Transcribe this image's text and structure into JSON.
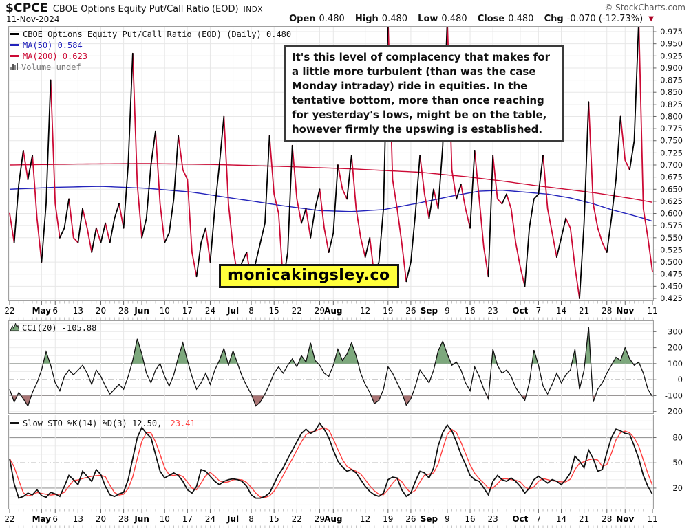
{
  "header": {
    "symbol": "$CPCE",
    "title": "CBOE Options Equity Put/Call Ratio (EOD)",
    "exchange": "INDX",
    "date": "11-Nov-2024",
    "copyright": "© StockCharts.com",
    "quote": {
      "open_label": "Open",
      "open_value": "0.480",
      "high_label": "High",
      "high_value": "0.480",
      "low_label": "Low",
      "low_value": "0.480",
      "close_label": "Close",
      "close_value": "0.480",
      "chg_label": "Chg",
      "chg_value": "-0.070 (-12.73%)"
    }
  },
  "icons": {
    "change_down": "▼"
  },
  "main_chart": {
    "legend_price": "CBOE Options Equity Put/Call Ratio (EOD) (Daily) 0.480",
    "legend_ma50": "MA(50) 0.584",
    "legend_ma200": "MA(200) 0.623",
    "legend_volume": "Volume undef",
    "annotation": "It's this level of complacency that makes for a little more turbulent (than was the case Monday intraday) ride in equities. In the tentative bottom, more than once reaching for yesterday's lows, might be on the table, however firmly the upswing is established.",
    "watermark": "monicakingsley.co"
  },
  "indicators": {
    "cci_legend": "CCI(20) -105.88",
    "sto_legend": "Slow STO %K(14) %D(3) 12.50,",
    "sto_legend_red": "23.41"
  },
  "x_axis": {
    "n": 142,
    "ticks": [
      {
        "i": 0,
        "label": "22",
        "bold": false
      },
      {
        "i": 7,
        "label": "May",
        "bold": true
      },
      {
        "i": 10,
        "label": "6",
        "bold": false
      },
      {
        "i": 15,
        "label": "13",
        "bold": false
      },
      {
        "i": 20,
        "label": "20",
        "bold": false
      },
      {
        "i": 25,
        "label": "28",
        "bold": false
      },
      {
        "i": 29,
        "label": "Jun",
        "bold": true
      },
      {
        "i": 34,
        "label": "10",
        "bold": false
      },
      {
        "i": 39,
        "label": "17",
        "bold": false
      },
      {
        "i": 44,
        "label": "24",
        "bold": false
      },
      {
        "i": 49,
        "label": "Jul",
        "bold": true
      },
      {
        "i": 53,
        "label": "8",
        "bold": false
      },
      {
        "i": 58,
        "label": "15",
        "bold": false
      },
      {
        "i": 63,
        "label": "22",
        "bold": false
      },
      {
        "i": 68,
        "label": "29",
        "bold": false
      },
      {
        "i": 71,
        "label": "Aug",
        "bold": true
      },
      {
        "i": 78,
        "label": "12",
        "bold": false
      },
      {
        "i": 83,
        "label": "19",
        "bold": false
      },
      {
        "i": 88,
        "label": "26",
        "bold": false
      },
      {
        "i": 92,
        "label": "Sep",
        "bold": true
      },
      {
        "i": 96,
        "label": "9",
        "bold": false
      },
      {
        "i": 101,
        "label": "16",
        "bold": false
      },
      {
        "i": 106,
        "label": "23",
        "bold": false
      },
      {
        "i": 112,
        "label": "Oct",
        "bold": true
      },
      {
        "i": 116,
        "label": "7",
        "bold": false
      },
      {
        "i": 121,
        "label": "14",
        "bold": false
      },
      {
        "i": 126,
        "label": "21",
        "bold": false
      },
      {
        "i": 131,
        "label": "28",
        "bold": false
      },
      {
        "i": 135,
        "label": "Nov",
        "bold": true
      },
      {
        "i": 141,
        "label": "11",
        "bold": false
      }
    ]
  },
  "chart_data": [
    {
      "type": "line",
      "name": "CBOE Options Equity Put/Call Ratio (EOD) (Daily)",
      "last": 0.48,
      "ylim": [
        0.4193,
        0.9864
      ],
      "yticks": [
        0.975,
        0.95,
        0.925,
        0.9,
        0.875,
        0.85,
        0.825,
        0.8,
        0.775,
        0.75,
        0.725,
        0.7,
        0.675,
        0.65,
        0.625,
        0.6,
        0.575,
        0.55,
        0.525,
        0.5,
        0.475,
        0.45,
        0.425
      ],
      "color_rule": "up-segments black, down-segments red",
      "values": [
        0.6,
        0.54,
        0.66,
        0.73,
        0.67,
        0.72,
        0.59,
        0.5,
        0.62,
        0.875,
        0.62,
        0.55,
        0.57,
        0.63,
        0.55,
        0.54,
        0.61,
        0.57,
        0.52,
        0.57,
        0.54,
        0.58,
        0.54,
        0.59,
        0.62,
        0.57,
        0.7,
        0.93,
        0.66,
        0.55,
        0.59,
        0.7,
        0.77,
        0.62,
        0.54,
        0.56,
        0.63,
        0.76,
        0.69,
        0.67,
        0.52,
        0.47,
        0.54,
        0.57,
        0.5,
        0.61,
        0.7,
        0.8,
        0.62,
        0.53,
        0.47,
        0.5,
        0.52,
        0.46,
        0.5,
        0.54,
        0.58,
        0.76,
        0.64,
        0.6,
        0.46,
        0.52,
        0.74,
        0.63,
        0.58,
        0.61,
        0.55,
        0.61,
        0.65,
        0.57,
        0.52,
        0.56,
        0.7,
        0.65,
        0.63,
        0.72,
        0.61,
        0.55,
        0.51,
        0.55,
        0.47,
        0.5,
        0.61,
        1.0,
        0.67,
        0.61,
        0.54,
        0.46,
        0.5,
        0.6,
        0.72,
        0.64,
        0.59,
        0.65,
        0.61,
        0.74,
        1.0,
        0.69,
        0.63,
        0.66,
        0.61,
        0.57,
        0.73,
        0.63,
        0.53,
        0.47,
        0.72,
        0.63,
        0.62,
        0.64,
        0.61,
        0.54,
        0.49,
        0.45,
        0.57,
        0.63,
        0.64,
        0.72,
        0.61,
        0.56,
        0.51,
        0.55,
        0.59,
        0.57,
        0.49,
        0.425,
        0.58,
        0.83,
        0.62,
        0.57,
        0.54,
        0.52,
        0.59,
        0.67,
        0.8,
        0.71,
        0.69,
        0.75,
        1.0,
        0.61,
        0.55,
        0.48
      ],
      "ma50_last": 0.584,
      "ma50_anchors": [
        [
          0,
          0.65
        ],
        [
          10,
          0.654
        ],
        [
          20,
          0.656
        ],
        [
          30,
          0.652
        ],
        [
          40,
          0.644
        ],
        [
          50,
          0.63
        ],
        [
          60,
          0.616
        ],
        [
          68,
          0.606
        ],
        [
          75,
          0.604
        ],
        [
          82,
          0.608
        ],
        [
          90,
          0.622
        ],
        [
          97,
          0.636
        ],
        [
          103,
          0.646
        ],
        [
          108,
          0.648
        ],
        [
          113,
          0.644
        ],
        [
          118,
          0.64
        ],
        [
          123,
          0.632
        ],
        [
          128,
          0.62
        ],
        [
          132,
          0.608
        ],
        [
          136,
          0.598
        ],
        [
          139,
          0.59
        ],
        [
          141,
          0.584
        ]
      ],
      "ma200_last": 0.623,
      "ma200_anchors": [
        [
          0,
          0.7
        ],
        [
          15,
          0.702
        ],
        [
          30,
          0.703
        ],
        [
          45,
          0.701
        ],
        [
          60,
          0.697
        ],
        [
          75,
          0.692
        ],
        [
          90,
          0.685
        ],
        [
          100,
          0.676
        ],
        [
          108,
          0.667
        ],
        [
          115,
          0.658
        ],
        [
          122,
          0.65
        ],
        [
          128,
          0.643
        ],
        [
          133,
          0.636
        ],
        [
          137,
          0.63
        ],
        [
          141,
          0.623
        ]
      ]
    },
    {
      "type": "line",
      "name": "CCI(20)",
      "last": -105.88,
      "ylim": [
        -212,
        368
      ],
      "yticks": [
        300,
        200,
        100,
        0,
        -100,
        -200
      ],
      "thresholds": {
        "upper": 100,
        "mid": 0,
        "lower": -100
      },
      "values": [
        -60,
        -140,
        -80,
        -120,
        -165,
        -80,
        -20,
        60,
        175,
        90,
        -20,
        -70,
        20,
        60,
        30,
        60,
        90,
        40,
        -30,
        60,
        20,
        -40,
        -90,
        -60,
        -30,
        -60,
        20,
        120,
        255,
        160,
        40,
        -20,
        60,
        100,
        20,
        -40,
        30,
        140,
        230,
        120,
        20,
        -60,
        -20,
        40,
        -30,
        60,
        120,
        195,
        90,
        180,
        100,
        20,
        -40,
        -90,
        -165,
        -140,
        -90,
        -30,
        40,
        80,
        40,
        90,
        130,
        80,
        150,
        110,
        230,
        120,
        90,
        40,
        20,
        90,
        190,
        120,
        160,
        230,
        150,
        40,
        -30,
        -80,
        -150,
        -130,
        -60,
        80,
        40,
        -20,
        -80,
        -160,
        -120,
        -40,
        60,
        20,
        -20,
        60,
        180,
        240,
        160,
        90,
        110,
        60,
        -20,
        -70,
        80,
        20,
        -60,
        -120,
        190,
        90,
        40,
        60,
        20,
        -50,
        -90,
        -130,
        -20,
        185,
        90,
        -40,
        -90,
        -30,
        40,
        -20,
        30,
        60,
        190,
        -60,
        60,
        330,
        -140,
        -60,
        -20,
        40,
        90,
        140,
        120,
        200,
        130,
        90,
        110,
        40,
        -60,
        -105.88
      ]
    },
    {
      "type": "line",
      "name": "Slow STO %K(14) %D(3)",
      "k_last": 12.5,
      "d_last": 23.41,
      "ylim": [
        -5,
        107
      ],
      "yticks": [
        80,
        50,
        20
      ],
      "thresholds": {
        "upper": 80,
        "mid": 50,
        "lower": 20
      },
      "d_rule": "3-period average of k",
      "k": [
        55,
        25,
        8,
        10,
        14,
        12,
        18,
        11,
        9,
        15,
        13,
        10,
        22,
        35,
        30,
        24,
        40,
        34,
        28,
        42,
        36,
        22,
        12,
        10,
        13,
        15,
        30,
        55,
        80,
        92,
        85,
        80,
        60,
        40,
        32,
        35,
        38,
        35,
        28,
        18,
        14,
        22,
        42,
        40,
        34,
        28,
        24,
        28,
        30,
        31,
        30,
        28,
        22,
        12,
        8,
        8,
        10,
        14,
        25,
        36,
        44,
        55,
        65,
        75,
        85,
        90,
        85,
        88,
        97,
        90,
        80,
        65,
        52,
        45,
        40,
        42,
        38,
        30,
        22,
        16,
        12,
        10,
        14,
        30,
        33,
        32,
        18,
        10,
        14,
        28,
        40,
        38,
        32,
        44,
        70,
        86,
        95,
        88,
        75,
        60,
        48,
        35,
        30,
        28,
        20,
        12,
        28,
        35,
        30,
        28,
        32,
        28,
        22,
        14,
        20,
        30,
        34,
        30,
        26,
        30,
        28,
        24,
        30,
        38,
        58,
        52,
        44,
        65,
        55,
        40,
        42,
        62,
        80,
        90,
        88,
        85,
        84,
        70,
        55,
        35,
        22,
        12.5
      ]
    }
  ],
  "colors": {
    "price_up": "#000000",
    "price_down": "#cc0a35",
    "ma50": "#2323bb",
    "ma200": "#cc0a35",
    "cci_line": "#111111",
    "cci_fill_high": "#7da87d",
    "cci_fill_low": "#aa7575",
    "sto_k": "#111111",
    "sto_d": "#ff4040",
    "grid_light": "#e7e7e7",
    "grid_strong": "#999999",
    "panel_border": "#a0a0a0",
    "watermark_bg": "#ffff3c",
    "accent_red": "#aa0022"
  }
}
